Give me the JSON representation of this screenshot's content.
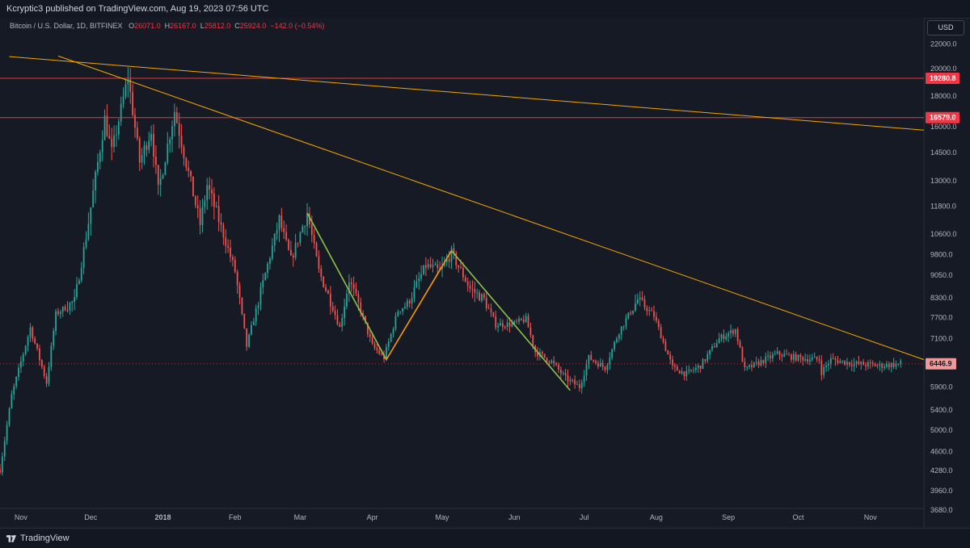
{
  "header": {
    "publish_text": "Kcryptic3 published on TradingView.com, Aug 19, 2023 07:56 UTC"
  },
  "legend": {
    "symbol": "Bitcoin / U.S. Dollar, 1D, BITFINEX",
    "o_label": "O",
    "o_value": "26071.0",
    "h_label": "H",
    "h_value": "26167.0",
    "l_label": "L",
    "l_value": "25812.0",
    "c_label": "C",
    "c_value": "25924.0",
    "change": "−142.0 (−0.54%)"
  },
  "currency_button": "USD",
  "footer": {
    "brand": "TradingView"
  },
  "colors": {
    "up": "#26a69a",
    "down": "#ef5350",
    "trendline": "#f7a600",
    "zigzag_green": "#8bc34a",
    "zigzag_orange": "#ff9800",
    "level_line": "#e53935",
    "price_tag_bg": "#f23645",
    "current_tag_bg": "#ef9a9a"
  },
  "chart_data": {
    "type": "candlestick",
    "scale": "log",
    "ylim": [
      3500,
      23000
    ],
    "xlim": [
      "2017-10-23",
      "2018-11-24"
    ],
    "y_ticks": [
      "22000.0",
      "20000.0",
      "18000.0",
      "16000.0",
      "14500.0",
      "13000.0",
      "11800.0",
      "10600.0",
      "9800.0",
      "9050.0",
      "8300.0",
      "7700.0",
      "7100.0",
      "6500.0",
      "5900.0",
      "5400.0",
      "5000.0",
      "4600.0",
      "4280.0",
      "3960.0",
      "3680.0"
    ],
    "x_ticks": [
      {
        "label": "Nov",
        "date": "2017-11-01"
      },
      {
        "label": "Dec",
        "date": "2017-12-01"
      },
      {
        "label": "2018",
        "date": "2018-01-01"
      },
      {
        "label": "Feb",
        "date": "2018-02-01"
      },
      {
        "label": "Mar",
        "date": "2018-03-01"
      },
      {
        "label": "Apr",
        "date": "2018-04-01"
      },
      {
        "label": "May",
        "date": "2018-05-01"
      },
      {
        "label": "Jun",
        "date": "2018-06-01"
      },
      {
        "label": "Jul",
        "date": "2018-07-01"
      },
      {
        "label": "Aug",
        "date": "2018-08-01"
      },
      {
        "label": "Sep",
        "date": "2018-09-01"
      },
      {
        "label": "Oct",
        "date": "2018-10-01"
      },
      {
        "label": "Nov",
        "date": "2018-11-01"
      }
    ],
    "price_path": [
      [
        "2017-10-23",
        4300
      ],
      [
        "2017-10-28",
        5700
      ],
      [
        "2017-11-05",
        7400
      ],
      [
        "2017-11-12",
        6000
      ],
      [
        "2017-11-16",
        7800
      ],
      [
        "2017-11-24",
        8200
      ],
      [
        "2017-11-29",
        10500
      ],
      [
        "2017-12-07",
        16500
      ],
      [
        "2017-12-10",
        14500
      ],
      [
        "2017-12-17",
        19400
      ],
      [
        "2017-12-22",
        14000
      ],
      [
        "2017-12-27",
        15800
      ],
      [
        "2017-12-30",
        12500
      ],
      [
        "2018-01-06",
        17000
      ],
      [
        "2018-01-10",
        14500
      ],
      [
        "2018-01-17",
        11000
      ],
      [
        "2018-01-20",
        12800
      ],
      [
        "2018-01-25",
        11200
      ],
      [
        "2018-02-01",
        9200
      ],
      [
        "2018-02-06",
        6900
      ],
      [
        "2018-02-11",
        8200
      ],
      [
        "2018-02-20",
        11200
      ],
      [
        "2018-02-25",
        9600
      ],
      [
        "2018-03-04",
        11500
      ],
      [
        "2018-03-09",
        9200
      ],
      [
        "2018-03-14",
        8200
      ],
      [
        "2018-03-18",
        7400
      ],
      [
        "2018-03-22",
        8900
      ],
      [
        "2018-03-27",
        7900
      ],
      [
        "2018-04-01",
        6900
      ],
      [
        "2018-04-06",
        6600
      ],
      [
        "2018-04-12",
        7900
      ],
      [
        "2018-04-16",
        8100
      ],
      [
        "2018-04-24",
        9400
      ],
      [
        "2018-04-30",
        9200
      ],
      [
        "2018-05-05",
        9850
      ],
      [
        "2018-05-13",
        8600
      ],
      [
        "2018-05-19",
        8250
      ],
      [
        "2018-05-24",
        7500
      ],
      [
        "2018-05-31",
        7500
      ],
      [
        "2018-06-06",
        7650
      ],
      [
        "2018-06-10",
        6750
      ],
      [
        "2018-06-17",
        6500
      ],
      [
        "2018-06-23",
        6100
      ],
      [
        "2018-06-29",
        5900
      ],
      [
        "2018-07-03",
        6600
      ],
      [
        "2018-07-10",
        6350
      ],
      [
        "2018-07-16",
        7300
      ],
      [
        "2018-07-24",
        8250
      ],
      [
        "2018-07-31",
        7750
      ],
      [
        "2018-08-08",
        6350
      ],
      [
        "2018-08-14",
        6200
      ],
      [
        "2018-08-20",
        6400
      ],
      [
        "2018-08-28",
        7100
      ],
      [
        "2018-09-04",
        7350
      ],
      [
        "2018-09-08",
        6300
      ],
      [
        "2018-09-15",
        6500
      ],
      [
        "2018-09-22",
        6700
      ],
      [
        "2018-09-30",
        6600
      ],
      [
        "2018-10-10",
        6550
      ],
      [
        "2018-10-11",
        6250
      ],
      [
        "2018-10-15",
        6550
      ],
      [
        "2018-10-25",
        6450
      ],
      [
        "2018-11-05",
        6400
      ],
      [
        "2018-11-14",
        6446.9
      ]
    ],
    "annotations": {
      "horizontal_levels": [
        {
          "label": "19280.8",
          "price": 19280.8
        },
        {
          "label": "16579.0",
          "price": 16579.0
        }
      ],
      "current_price_label": "6446.9",
      "trendlines": [
        {
          "from": [
            "2017-10-27",
            20950
          ],
          "to": [
            "2018-11-24",
            15800
          ]
        },
        {
          "from": [
            "2017-11-17",
            21000
          ],
          "to": [
            "2018-11-24",
            6550
          ]
        }
      ],
      "zigzag": [
        {
          "from": [
            "2018-03-04",
            11500
          ],
          "to": [
            "2018-04-07",
            6550
          ],
          "color": "green"
        },
        {
          "from": [
            "2018-04-07",
            6550
          ],
          "to": [
            "2018-05-05",
            9950
          ],
          "color": "orange"
        },
        {
          "from": [
            "2018-05-05",
            9950
          ],
          "to": [
            "2018-06-25",
            5820
          ],
          "color": "green"
        }
      ]
    }
  }
}
